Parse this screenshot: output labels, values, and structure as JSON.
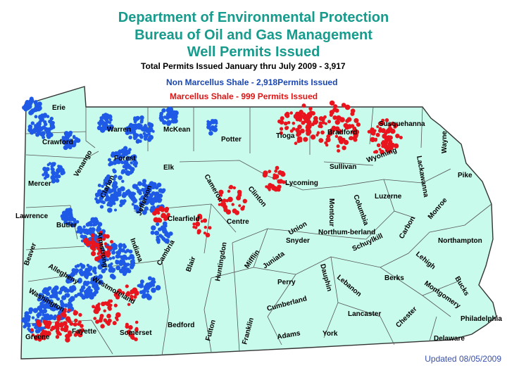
{
  "header": {
    "line1": "Department of Environmental Protection",
    "line2": "Bureau of Oil and Gas Management",
    "line3": "Well Permits Issued",
    "total": "Total Permits Issued January thru July 2009 - 3,917",
    "non_marcellus": "Non Marcellus Shale - 2,918Permits Issued",
    "marcellus": "Marcellus Shale - 999 Permits Issued"
  },
  "footer": {
    "updated": "Updated 08/05/2009"
  },
  "colors": {
    "land": "#c8fbeb",
    "title": "#169b8c",
    "non_marcellus": "#1f5ae6",
    "marcellus": "#e8141e",
    "border": "#333333"
  },
  "counties": [
    {
      "name": "Erie"
    },
    {
      "name": "Crawford"
    },
    {
      "name": "Warren"
    },
    {
      "name": "McKean"
    },
    {
      "name": "Potter"
    },
    {
      "name": "Tioga"
    },
    {
      "name": "Bradford"
    },
    {
      "name": "Susquehanna"
    },
    {
      "name": "Wayne"
    },
    {
      "name": "Mercer"
    },
    {
      "name": "Venango"
    },
    {
      "name": "Forest"
    },
    {
      "name": "Elk"
    },
    {
      "name": "Cameron"
    },
    {
      "name": "Clinton"
    },
    {
      "name": "Lycoming"
    },
    {
      "name": "Sullivan"
    },
    {
      "name": "Wyoming"
    },
    {
      "name": "Lackawanna"
    },
    {
      "name": "Pike"
    },
    {
      "name": "Lawrence"
    },
    {
      "name": "Butler"
    },
    {
      "name": "Clarion"
    },
    {
      "name": "Jefferson"
    },
    {
      "name": "Clearfield"
    },
    {
      "name": "Centre"
    },
    {
      "name": "Union"
    },
    {
      "name": "Montour"
    },
    {
      "name": "Columbia"
    },
    {
      "name": "Luzerne"
    },
    {
      "name": "Carbon"
    },
    {
      "name": "Monroe"
    },
    {
      "name": "Beaver"
    },
    {
      "name": "Armstrong"
    },
    {
      "name": "Indiana"
    },
    {
      "name": "Snyder"
    },
    {
      "name": "Northum-berland"
    },
    {
      "name": "Schuylkill"
    },
    {
      "name": "Lehigh"
    },
    {
      "name": "Northampton"
    },
    {
      "name": "Allegheny"
    },
    {
      "name": "Westmoreland"
    },
    {
      "name": "Cambria"
    },
    {
      "name": "Blair"
    },
    {
      "name": "Huntingdon"
    },
    {
      "name": "Mifflin"
    },
    {
      "name": "Juniata"
    },
    {
      "name": "Perry"
    },
    {
      "name": "Dauphin"
    },
    {
      "name": "Lebanon"
    },
    {
      "name": "Berks"
    },
    {
      "name": "Montgomery"
    },
    {
      "name": "Bucks"
    },
    {
      "name": "Washington"
    },
    {
      "name": "Greene"
    },
    {
      "name": "Fayette"
    },
    {
      "name": "Somerset"
    },
    {
      "name": "Bedford"
    },
    {
      "name": "Fulton"
    },
    {
      "name": "Franklin"
    },
    {
      "name": "Cumberland"
    },
    {
      "name": "Adams"
    },
    {
      "name": "York"
    },
    {
      "name": "Lancaster"
    },
    {
      "name": "Chester"
    },
    {
      "name": "Delaware"
    },
    {
      "name": "Philadelphia"
    }
  ]
}
